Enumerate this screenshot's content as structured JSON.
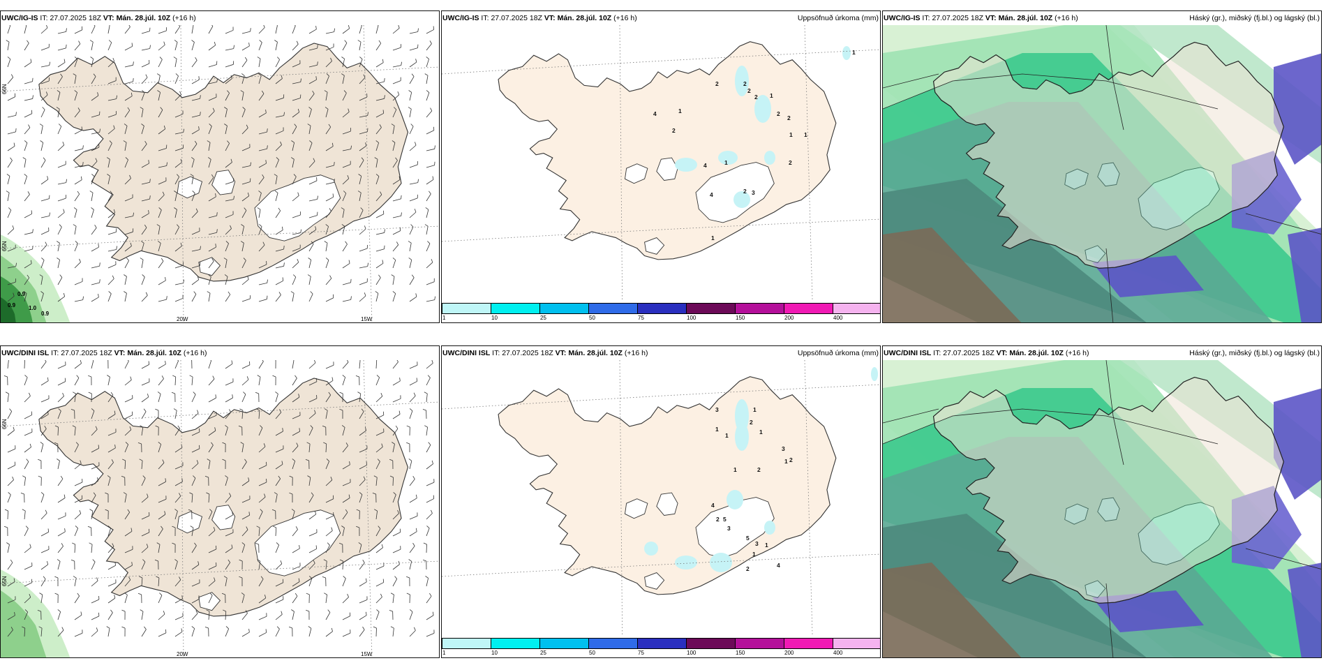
{
  "rows": [
    {
      "model": "UWC/IG-IS",
      "it_label": "IT:",
      "it_value": "27.07.2025 18Z",
      "vt_label": "VT:",
      "vt_value": "Mán. 28.júl. 10Z",
      "lead": "(+16 h)",
      "rain_values": [
        "2",
        "2",
        "2",
        "2",
        "1",
        "1",
        "4",
        "2",
        "2",
        "2",
        "1",
        "1",
        "4",
        "1",
        "2",
        "4",
        "2",
        "3",
        "1",
        "1"
      ],
      "wind_labels": [
        "0.9",
        "0.9",
        "1.0",
        "0.9"
      ]
    },
    {
      "model": "UWC/DINI ISL",
      "it_label": "IT:",
      "it_value": "27.07.2025 18Z",
      "vt_label": "VT:",
      "vt_value": "Mán. 28.júl. 10Z",
      "lead": "(+16 h)",
      "rain_values": [
        "3",
        "1",
        "2",
        "1",
        "1",
        "3",
        "1",
        "1",
        "2",
        "1",
        "2",
        "4",
        "5",
        "3",
        "5",
        "3",
        "1",
        "2",
        "1",
        "4",
        "2"
      ],
      "wind_labels": []
    }
  ],
  "precip_title": "Uppsöfnuð úrkoma (mm)",
  "cloud_title": "Háský (gr.), miðský (fj.bl.) og lágský (bl.)",
  "lat_labels": [
    "66N",
    "65N"
  ],
  "lon_labels": [
    "20W",
    "15W"
  ],
  "colorbar": {
    "labels": [
      "1",
      "10",
      "25",
      "50",
      "75",
      "100",
      "150",
      "200",
      "400"
    ],
    "colors": [
      "#bff6f7",
      "#00f0f0",
      "#00c0ef",
      "#2f6be8",
      "#2a2fbf",
      "#6c0a58",
      "#b4109a",
      "#f01ab4",
      "#f5b3ef"
    ]
  },
  "colors": {
    "land": "#efe4d6",
    "land_precip": "#fcf0e3",
    "ice": "#ffffff",
    "coast": "#333333"
  }
}
